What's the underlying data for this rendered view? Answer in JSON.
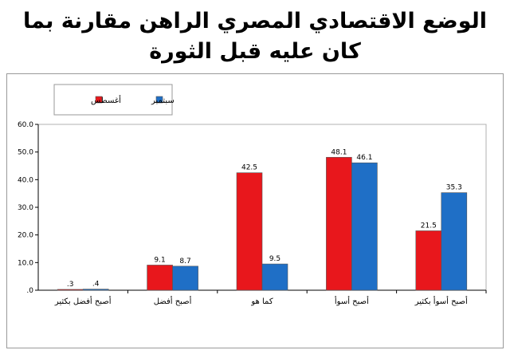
{
  "chart_data": {
    "type": "bar",
    "title": "الوضع الاقتصادي المصري الراهن مقارنة بما كان عليه قبل الثورة",
    "title_lines": [
      "الوضع الاقتصادي المصري الراهن مقارنة بما",
      "كان عليه قبل الثورة"
    ],
    "categories": [
      "أصبح أفضل بكثير",
      "أصبح أفضل",
      "كما هو",
      "أصبح أسوأ",
      "أصبح أسوأ بكثير"
    ],
    "series": [
      {
        "name": "أغسطس",
        "color": "#e8171c",
        "values": [
          0.3,
          9.1,
          42.5,
          48.1,
          21.5
        ],
        "labels": [
          ".3",
          "9.1",
          "42.5",
          "48.1",
          "21.5"
        ]
      },
      {
        "name": "سبتمبر",
        "color": "#1f6fc6",
        "values": [
          0.4,
          8.7,
          9.5,
          46.1,
          35.3
        ],
        "labels": [
          ".4",
          "8.7",
          "9.5",
          "46.1",
          "35.3"
        ]
      }
    ],
    "ylim": [
      0,
      60
    ],
    "yticks": [
      0,
      10,
      20,
      30,
      40,
      50,
      60
    ],
    "ytick_labels": [
      ".0",
      "10.0",
      "20.0",
      "30.0",
      "40.0",
      "50.0",
      "60.0"
    ],
    "grid": false,
    "legend_position": "top-left",
    "xlabel": "",
    "ylabel": ""
  }
}
